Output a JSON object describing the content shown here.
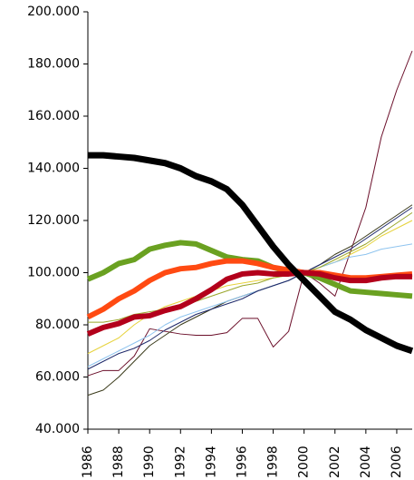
{
  "chart_data": {
    "type": "line",
    "x": [
      1986,
      1987,
      1988,
      1989,
      1990,
      1991,
      1992,
      1993,
      1994,
      1995,
      1996,
      1997,
      1998,
      1999,
      2000,
      2001,
      2002,
      2003,
      2004,
      2005,
      2006,
      2007
    ],
    "xlim": [
      1986,
      2007
    ],
    "xticks": [
      1986,
      1988,
      1990,
      1992,
      1994,
      1996,
      1998,
      2000,
      2002,
      2004,
      2006
    ],
    "ylim": [
      40000,
      200000
    ],
    "yticks": [
      {
        "value": 40000,
        "label": "40.000"
      },
      {
        "value": 60000,
        "label": "60.000"
      },
      {
        "value": 80000,
        "label": "80.000"
      },
      {
        "value": 100000,
        "label": "100.000"
      },
      {
        "value": 120000,
        "label": "120.000"
      },
      {
        "value": 140000,
        "label": "140.000"
      },
      {
        "value": 160000,
        "label": "160.000"
      },
      {
        "value": 180000,
        "label": "180.000"
      },
      {
        "value": 200000,
        "label": "200.000"
      }
    ],
    "series": [
      {
        "color": "#6b0f2a",
        "line_width": 1,
        "values": [
          60500,
          62500,
          62500,
          68000,
          78500,
          77500,
          76500,
          76000,
          76000,
          77000,
          82500,
          82500,
          71500,
          77500,
          100000,
          96000,
          91000,
          108000,
          125000,
          152000,
          170000,
          185000
        ]
      },
      {
        "color": "#3a3a1a",
        "line_width": 1,
        "values": [
          53000,
          55000,
          60000,
          66000,
          72000,
          76000,
          80000,
          83000,
          86000,
          89000,
          91000,
          93000,
          95000,
          97000,
          100000,
          103000,
          107000,
          110000,
          114000,
          118000,
          122000,
          126000
        ]
      },
      {
        "color": "#e6d23a",
        "line_width": 1,
        "values": [
          69000,
          72000,
          75000,
          80000,
          84000,
          87000,
          89000,
          91000,
          93000,
          95000,
          96000,
          97000,
          98000,
          99000,
          100000,
          102000,
          104000,
          107000,
          110000,
          114000,
          117000,
          120000
        ]
      },
      {
        "color": "#8fc4ef",
        "line_width": 1,
        "values": [
          64000,
          67000,
          70000,
          73000,
          76000,
          80000,
          83000,
          85000,
          87000,
          89000,
          91000,
          93000,
          95000,
          97000,
          100000,
          102000,
          104000,
          106000,
          107000,
          109000,
          110000,
          111000
        ]
      },
      {
        "color": "#9aa62a",
        "line_width": 1,
        "values": [
          81000,
          81000,
          82000,
          84000,
          85000,
          86000,
          87000,
          89000,
          91000,
          93000,
          95000,
          96000,
          98000,
          99000,
          100000,
          102000,
          105000,
          108000,
          111000,
          115000,
          119000,
          123000
        ]
      },
      {
        "color": "#1f2a6b",
        "line_width": 1,
        "values": [
          63000,
          66000,
          69000,
          71000,
          74000,
          78000,
          81000,
          84000,
          86000,
          88000,
          90000,
          93000,
          95000,
          97000,
          100000,
          103000,
          106000,
          109000,
          113000,
          117000,
          121000,
          125000
        ]
      },
      {
        "color": "#6aa121",
        "line_width": 6,
        "values": [
          97500,
          100000,
          103500,
          105000,
          109000,
          110500,
          111500,
          111000,
          108500,
          106000,
          105000,
          104500,
          102000,
          100500,
          100000,
          98000,
          95500,
          93000,
          92500,
          92000,
          91500,
          91000
        ]
      },
      {
        "color": "#ff4a12",
        "line_width": 6,
        "values": [
          83000,
          86000,
          90000,
          93000,
          97000,
          100000,
          101500,
          102000,
          103500,
          104500,
          104500,
          103500,
          102000,
          101000,
          100000,
          100000,
          99000,
          98000,
          98000,
          98500,
          99000,
          99500
        ]
      },
      {
        "color": "#b3001b",
        "line_width": 6,
        "values": [
          76500,
          79000,
          80500,
          83000,
          83500,
          85500,
          87000,
          90000,
          93500,
          97500,
          99500,
          100000,
          99500,
          99500,
          100000,
          99500,
          98000,
          97000,
          97000,
          98000,
          98500,
          98500
        ]
      },
      {
        "color": "#000000",
        "line_width": 7,
        "values": [
          145000,
          145000,
          144500,
          144000,
          143000,
          142000,
          140000,
          137000,
          135000,
          132000,
          126000,
          118000,
          110000,
          103000,
          97000,
          91000,
          85000,
          82000,
          78000,
          75000,
          72000,
          70000
        ]
      }
    ]
  }
}
